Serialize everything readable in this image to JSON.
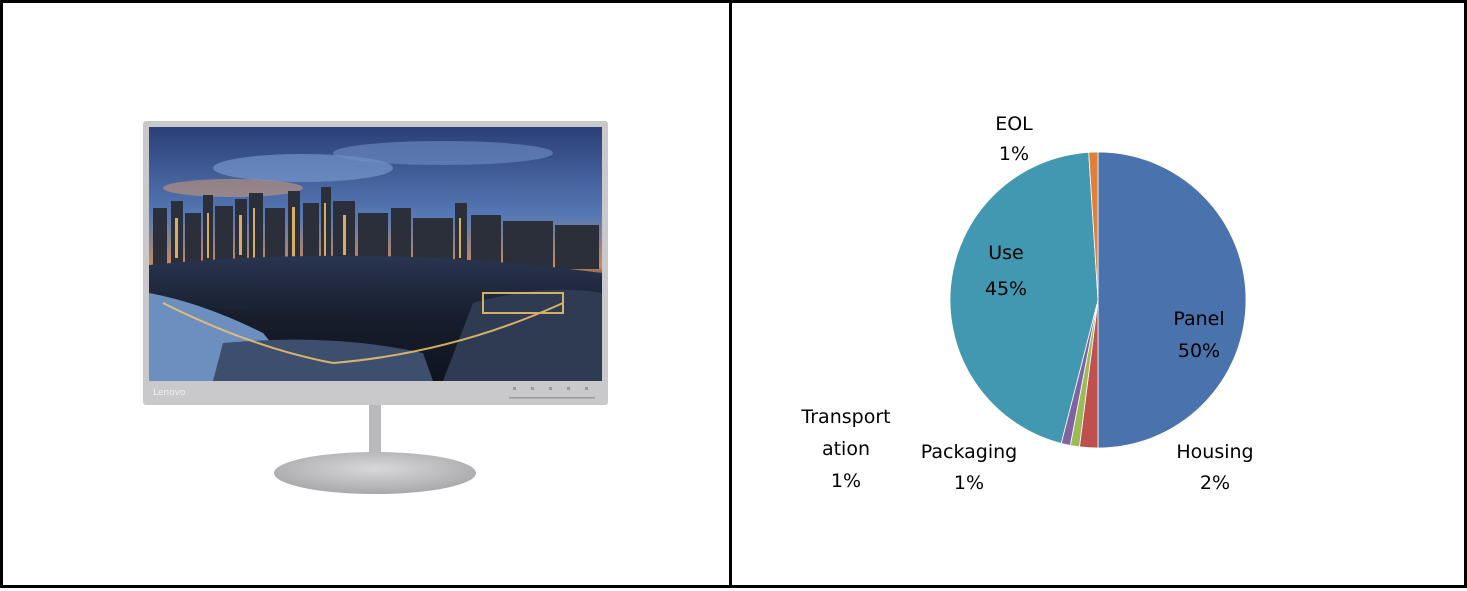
{
  "monitor": {
    "brand": "Lenovo",
    "screen_description": "city skyline at dusk",
    "frame_color": "#c9c9cb"
  },
  "chart_data": {
    "type": "pie",
    "title": "",
    "slices": [
      {
        "label": "Panel",
        "value": 50,
        "value_label": "50%",
        "color": "#4a72ac"
      },
      {
        "label": "Housing",
        "value": 2,
        "value_label": "2%",
        "color": "#c0504d"
      },
      {
        "label": "Packaging",
        "value": 1,
        "value_label": "1%",
        "color": "#9bbb59"
      },
      {
        "label": "Transport ation",
        "value": 1,
        "value_label": "1%",
        "color": "#8064a2"
      },
      {
        "label": "Use",
        "value": 45,
        "value_label": "45%",
        "color": "#4198b0"
      },
      {
        "label": "EOL",
        "value": 1,
        "value_label": "1%",
        "color": "#e27f36"
      }
    ],
    "legend": "none"
  }
}
